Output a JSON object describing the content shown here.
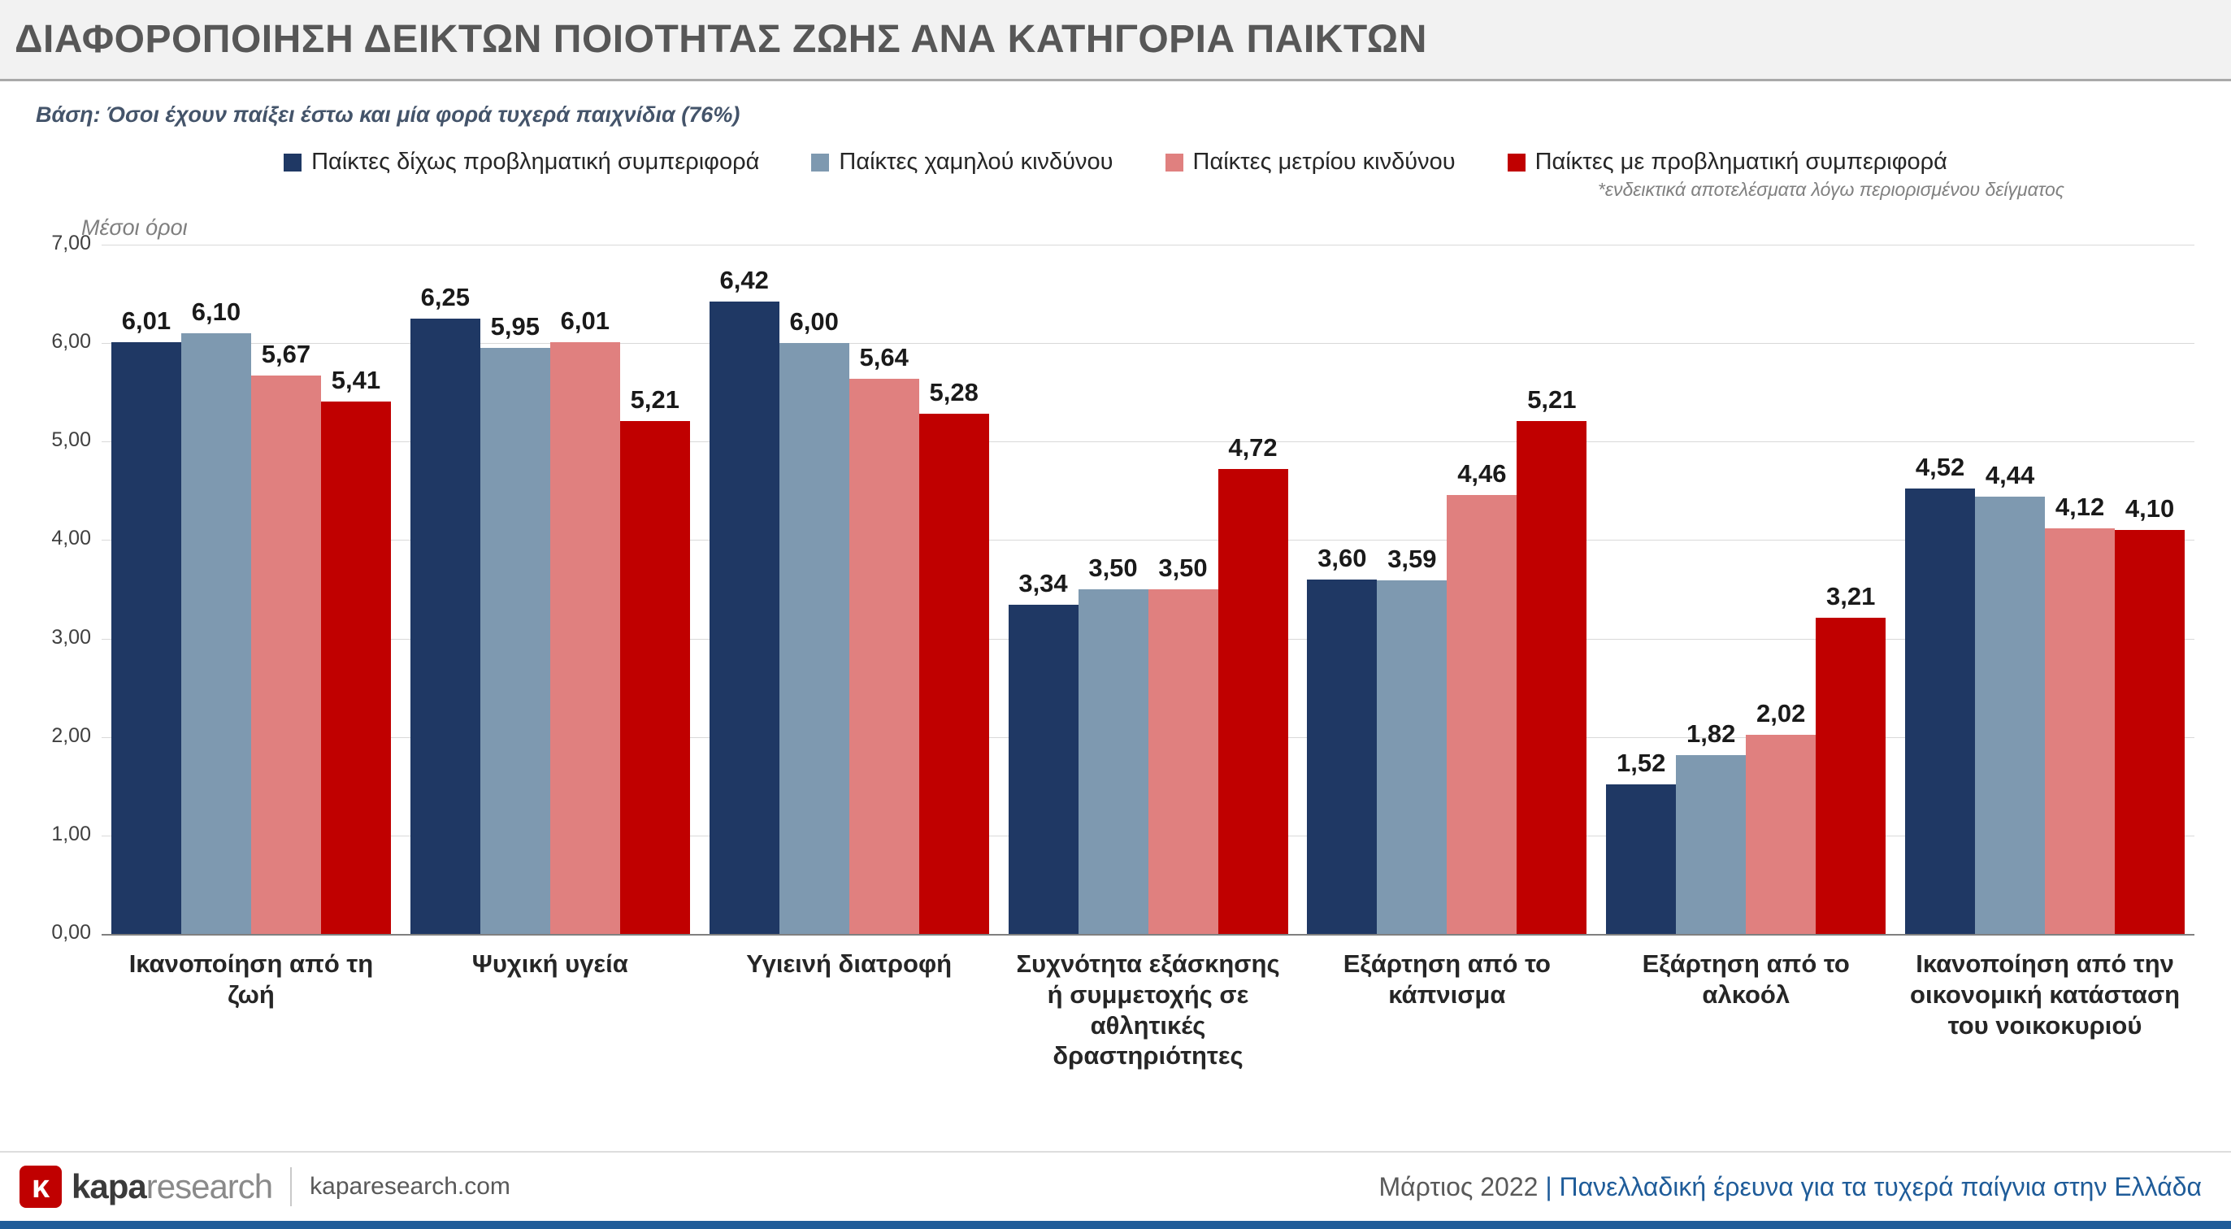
{
  "header": {
    "title": "ΔΙΑΦΟΡΟΠΟΙΗΣΗ ΔΕΙΚΤΩΝ ΠΟΙΟΤΗΤΑΣ ΖΩΗΣ ΑΝΑ ΚΑΤΗΓΟΡΙΑ ΠΑΙΚΤΩΝ"
  },
  "base_note": "Βάση: Όσοι έχουν παίξει έστω και μία φορά τυχερά παιχνίδια (76%)",
  "legend_footnote": "*ενδεικτικά αποτελέσματα λόγω περιορισμένου δείγματος",
  "chart_data": {
    "type": "bar",
    "title": "ΔΙΑΦΟΡΟΠΟΙΗΣΗ ΔΕΙΚΤΩΝ ΠΟΙΟΤΗΤΑΣ ΖΩΗΣ ΑΝΑ ΚΑΤΗΓΟΡΙΑ ΠΑΙΚΤΩΝ",
    "ylabel": "Μέσοι όροι",
    "xlabel": "",
    "ylim": [
      0,
      7
    ],
    "ytick_step": 1,
    "grid": true,
    "legend_position": "top",
    "value_label_decimals": 2,
    "decimal_separator": ",",
    "categories": [
      "Ικανοποίηση από τη ζωή",
      "Ψυχική υγεία",
      "Υγιεινή διατροφή",
      "Συχνότητα εξάσκησης ή συμμετοχής σε αθλητικές δραστηριότητες",
      "Εξάρτηση από το κάπνισμα",
      "Εξάρτηση από το αλκοόλ",
      "Ικανοποίηση από την οικονομική κατάσταση του νοικοκυριού"
    ],
    "series": [
      {
        "name": "Παίκτες δίχως προβληματική συμπεριφορά",
        "color": "#1F3864",
        "values": [
          6.01,
          6.25,
          6.42,
          3.34,
          3.6,
          1.52,
          4.52
        ]
      },
      {
        "name": "Παίκτες χαμηλού κινδύνου",
        "color": "#7E99B0",
        "values": [
          6.1,
          5.95,
          6.0,
          3.5,
          3.59,
          1.82,
          4.44
        ]
      },
      {
        "name": "Παίκτες μετρίου κινδύνου",
        "color": "#E0807F",
        "values": [
          5.67,
          6.01,
          5.64,
          3.5,
          4.46,
          2.02,
          4.12
        ]
      },
      {
        "name": "Παίκτες με προβληματική συμπεριφορά",
        "color": "#C00000",
        "values": [
          5.41,
          5.21,
          5.28,
          4.72,
          5.21,
          3.21,
          4.1
        ]
      }
    ]
  },
  "footer": {
    "logo_mark": "κ",
    "logo_primary": "kapa",
    "logo_secondary": "research",
    "website": "kaparesearch.com",
    "date_label": "Μάρτιος 2022",
    "separator": "|",
    "source_label": "Πανελλαδική έρευνα για τα τυχερά παίγνια στην Ελλάδα",
    "accent_color": "#1F5C99"
  }
}
